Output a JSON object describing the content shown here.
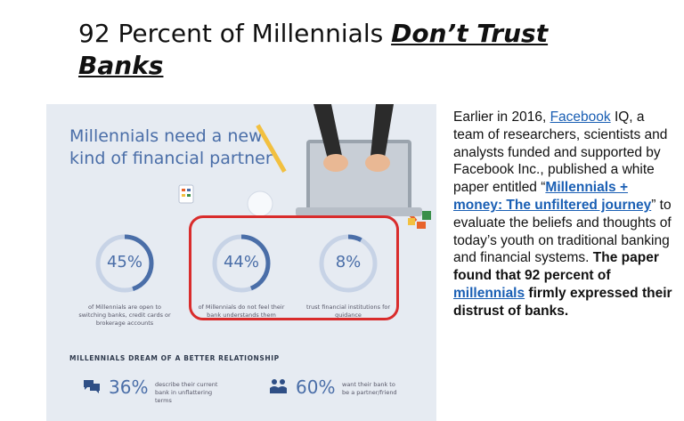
{
  "slide": {
    "title_plain": "92 Percent of Millennials ",
    "title_emphasis": "Don’t Trust Banks"
  },
  "infographic": {
    "heading": "Millennials need a new kind of financial partner",
    "stats": [
      {
        "value": "45%",
        "fraction": 0.45,
        "caption": "of Millennials are open to switching banks, credit cards or brokerage accounts"
      },
      {
        "value": "44%",
        "fraction": 0.44,
        "caption": "of Millennials do not feel their bank understands them"
      },
      {
        "value": "8%",
        "fraction": 0.08,
        "caption": "trust financial institutions for guidance"
      }
    ],
    "relationship_heading": "MILLENNIALS DREAM OF A BETTER RELATIONSHIP",
    "bottom_stats": [
      {
        "value": "36%",
        "caption": "describe their current bank in unflattering terms",
        "icon": "speech-bubbles-icon"
      },
      {
        "value": "60%",
        "caption": "want their bank to be a partner/friend",
        "icon": "people-icon"
      }
    ],
    "colors": {
      "accent": "#4a6ea8",
      "ring_track": "#c7d3e6",
      "highlight": "#d92c2c",
      "background": "#e6ebf2"
    }
  },
  "body": {
    "t1": "Earlier in 2016, ",
    "link_facebook": "Facebook",
    "t2": " IQ, a team of researchers, scientists and analysts funded and supported by Facebook Inc., published a white paper entitled “",
    "link_paper": "Millennials + money: The unfiltered journey",
    "t3": "” to evaluate the beliefs and thoughts of today’s youth on traditional banking and financial systems. ",
    "bold_found": "The paper found that 92 percent of ",
    "link_millennials": "millennials",
    "bold_end": " firmly expressed their distrust of banks."
  }
}
